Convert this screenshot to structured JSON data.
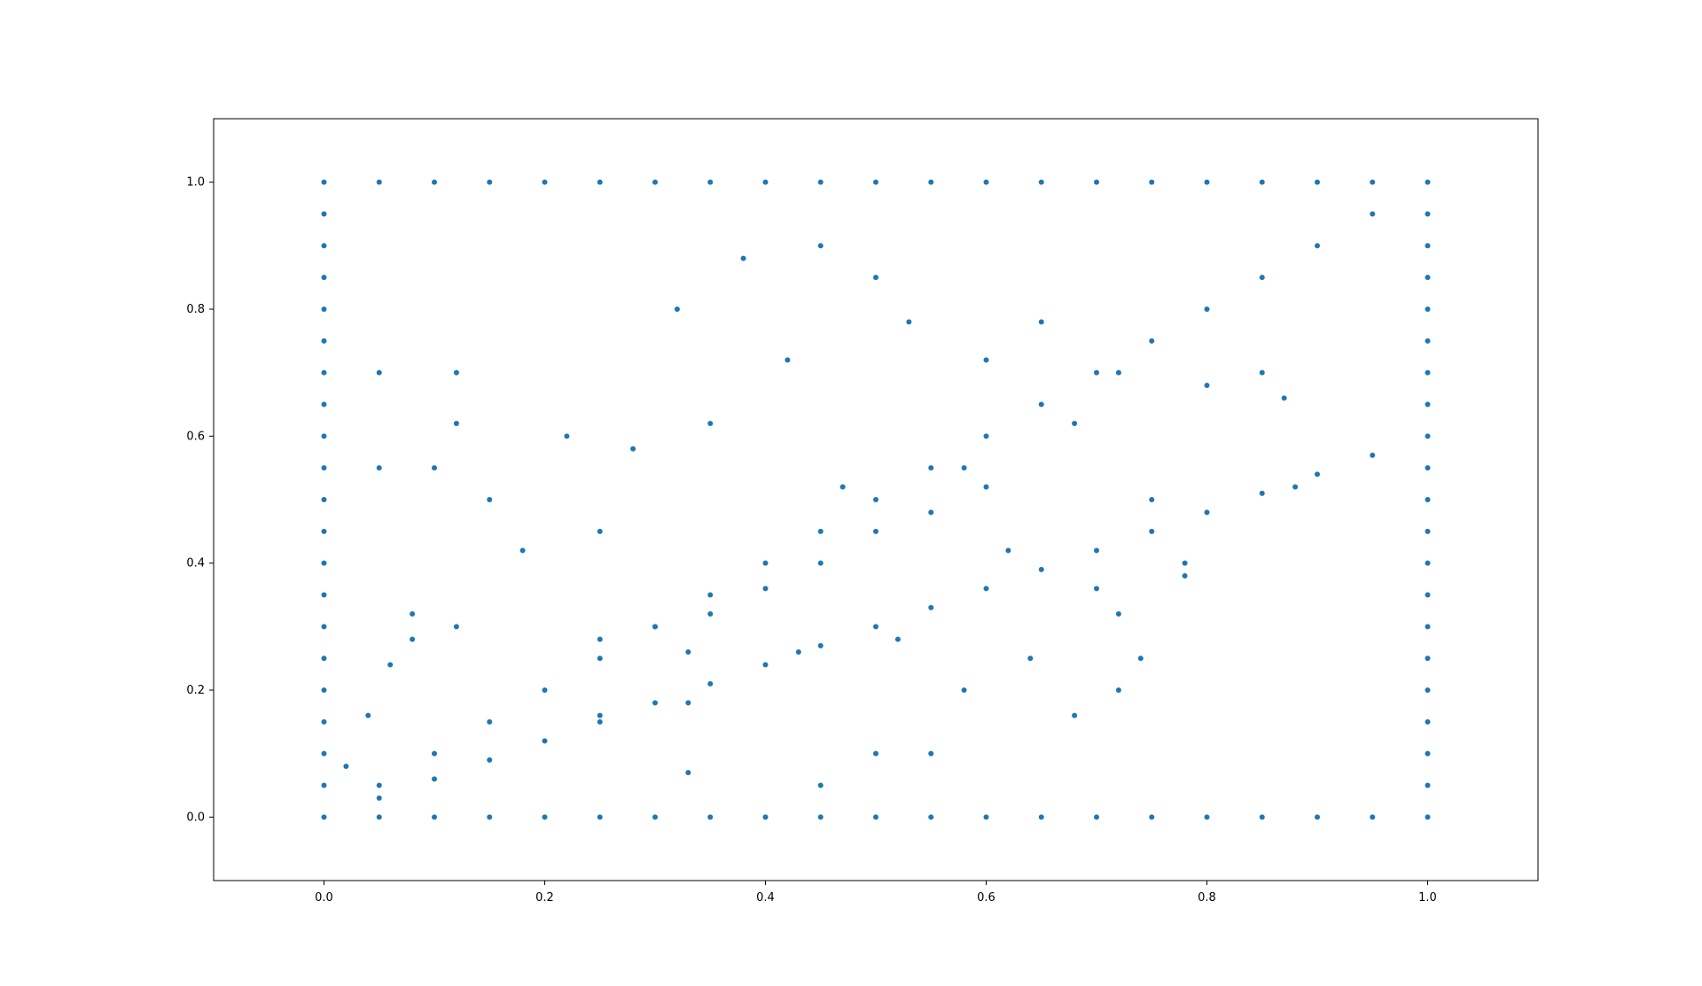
{
  "chart_data": {
    "type": "scatter",
    "title": "",
    "xlabel": "",
    "ylabel": "",
    "xlim": [
      -0.1,
      1.1
    ],
    "ylim": [
      -0.1,
      1.1
    ],
    "xticks": [
      0.0,
      0.2,
      0.4,
      0.6,
      0.8,
      1.0
    ],
    "xtick_labels": [
      "0.0",
      "0.2",
      "0.4",
      "0.6",
      "0.8",
      "1.0"
    ],
    "yticks": [
      0.0,
      0.2,
      0.4,
      0.6,
      0.8,
      1.0
    ],
    "ytick_labels": [
      "0.0",
      "0.2",
      "0.4",
      "0.6",
      "0.8",
      "1.0"
    ],
    "grid": false,
    "color": "#1f77b4",
    "series": [
      {
        "points": [
          [
            0.0,
            0.0
          ],
          [
            0.0,
            0.05
          ],
          [
            0.0,
            0.1
          ],
          [
            0.0,
            0.15
          ],
          [
            0.0,
            0.2
          ],
          [
            0.0,
            0.25
          ],
          [
            0.0,
            0.3
          ],
          [
            0.0,
            0.35
          ],
          [
            0.0,
            0.4
          ],
          [
            0.0,
            0.45
          ],
          [
            0.0,
            0.5
          ],
          [
            0.0,
            0.55
          ],
          [
            0.0,
            0.6
          ],
          [
            0.0,
            0.65
          ],
          [
            0.0,
            0.7
          ],
          [
            0.0,
            0.75
          ],
          [
            0.0,
            0.8
          ],
          [
            0.0,
            0.85
          ],
          [
            0.0,
            0.9
          ],
          [
            0.0,
            0.95
          ],
          [
            0.0,
            1.0
          ],
          [
            1.0,
            0.0
          ],
          [
            1.0,
            0.05
          ],
          [
            1.0,
            0.1
          ],
          [
            1.0,
            0.15
          ],
          [
            1.0,
            0.2
          ],
          [
            1.0,
            0.25
          ],
          [
            1.0,
            0.3
          ],
          [
            1.0,
            0.35
          ],
          [
            1.0,
            0.4
          ],
          [
            1.0,
            0.45
          ],
          [
            1.0,
            0.5
          ],
          [
            1.0,
            0.55
          ],
          [
            1.0,
            0.6
          ],
          [
            1.0,
            0.65
          ],
          [
            1.0,
            0.7
          ],
          [
            1.0,
            0.75
          ],
          [
            1.0,
            0.8
          ],
          [
            1.0,
            0.85
          ],
          [
            1.0,
            0.9
          ],
          [
            1.0,
            0.95
          ],
          [
            1.0,
            1.0
          ],
          [
            0.05,
            0.0
          ],
          [
            0.1,
            0.0
          ],
          [
            0.15,
            0.0
          ],
          [
            0.2,
            0.0
          ],
          [
            0.25,
            0.0
          ],
          [
            0.3,
            0.0
          ],
          [
            0.35,
            0.0
          ],
          [
            0.4,
            0.0
          ],
          [
            0.45,
            0.0
          ],
          [
            0.5,
            0.0
          ],
          [
            0.55,
            0.0
          ],
          [
            0.6,
            0.0
          ],
          [
            0.65,
            0.0
          ],
          [
            0.7,
            0.0
          ],
          [
            0.75,
            0.0
          ],
          [
            0.8,
            0.0
          ],
          [
            0.85,
            0.0
          ],
          [
            0.9,
            0.0
          ],
          [
            0.95,
            0.0
          ],
          [
            0.05,
            1.0
          ],
          [
            0.1,
            1.0
          ],
          [
            0.15,
            1.0
          ],
          [
            0.2,
            1.0
          ],
          [
            0.25,
            1.0
          ],
          [
            0.3,
            1.0
          ],
          [
            0.35,
            1.0
          ],
          [
            0.4,
            1.0
          ],
          [
            0.45,
            1.0
          ],
          [
            0.5,
            1.0
          ],
          [
            0.55,
            1.0
          ],
          [
            0.6,
            1.0
          ],
          [
            0.65,
            1.0
          ],
          [
            0.7,
            1.0
          ],
          [
            0.75,
            1.0
          ],
          [
            0.8,
            1.0
          ],
          [
            0.85,
            1.0
          ],
          [
            0.9,
            1.0
          ],
          [
            0.95,
            1.0
          ],
          [
            0.05,
            0.05
          ],
          [
            0.1,
            0.1
          ],
          [
            0.15,
            0.15
          ],
          [
            0.2,
            0.2
          ],
          [
            0.25,
            0.25
          ],
          [
            0.3,
            0.3
          ],
          [
            0.35,
            0.35
          ],
          [
            0.4,
            0.4
          ],
          [
            0.45,
            0.45
          ],
          [
            0.5,
            0.5
          ],
          [
            0.55,
            0.55
          ],
          [
            0.6,
            0.6
          ],
          [
            0.65,
            0.65
          ],
          [
            0.7,
            0.7
          ],
          [
            0.75,
            0.75
          ],
          [
            0.8,
            0.8
          ],
          [
            0.85,
            0.85
          ],
          [
            0.9,
            0.9
          ],
          [
            0.95,
            0.95
          ],
          [
            0.05,
            0.03
          ],
          [
            0.1,
            0.06
          ],
          [
            0.15,
            0.09
          ],
          [
            0.2,
            0.12
          ],
          [
            0.25,
            0.15
          ],
          [
            0.3,
            0.18
          ],
          [
            0.35,
            0.21
          ],
          [
            0.4,
            0.24
          ],
          [
            0.45,
            0.27
          ],
          [
            0.5,
            0.3
          ],
          [
            0.55,
            0.33
          ],
          [
            0.6,
            0.36
          ],
          [
            0.65,
            0.39
          ],
          [
            0.7,
            0.42
          ],
          [
            0.75,
            0.45
          ],
          [
            0.8,
            0.48
          ],
          [
            0.85,
            0.51
          ],
          [
            0.9,
            0.54
          ],
          [
            0.95,
            0.57
          ],
          [
            0.02,
            0.08
          ],
          [
            0.04,
            0.16
          ],
          [
            0.06,
            0.24
          ],
          [
            0.08,
            0.32
          ],
          [
            0.3,
            0.3
          ],
          [
            0.35,
            0.32
          ],
          [
            0.4,
            0.36
          ],
          [
            0.45,
            0.4
          ],
          [
            0.5,
            0.45
          ],
          [
            0.55,
            0.48
          ],
          [
            0.6,
            0.52
          ],
          [
            0.05,
            0.55
          ],
          [
            0.1,
            0.55
          ],
          [
            0.05,
            0.7
          ],
          [
            0.12,
            0.62
          ],
          [
            0.12,
            0.7
          ],
          [
            0.15,
            0.5
          ],
          [
            0.18,
            0.42
          ],
          [
            0.22,
            0.6
          ],
          [
            0.25,
            0.45
          ],
          [
            0.28,
            0.58
          ],
          [
            0.32,
            0.8
          ],
          [
            0.35,
            0.62
          ],
          [
            0.38,
            0.88
          ],
          [
            0.42,
            0.72
          ],
          [
            0.45,
            0.9
          ],
          [
            0.47,
            0.52
          ],
          [
            0.5,
            0.85
          ],
          [
            0.53,
            0.78
          ],
          [
            0.58,
            0.55
          ],
          [
            0.6,
            0.72
          ],
          [
            0.62,
            0.42
          ],
          [
            0.65,
            0.78
          ],
          [
            0.68,
            0.62
          ],
          [
            0.7,
            0.36
          ],
          [
            0.72,
            0.7
          ],
          [
            0.75,
            0.5
          ],
          [
            0.78,
            0.38
          ],
          [
            0.8,
            0.68
          ],
          [
            0.85,
            0.7
          ],
          [
            0.88,
            0.52
          ],
          [
            0.08,
            0.28
          ],
          [
            0.12,
            0.3
          ],
          [
            0.25,
            0.28
          ],
          [
            0.25,
            0.16
          ],
          [
            0.33,
            0.18
          ],
          [
            0.33,
            0.07
          ],
          [
            0.45,
            0.05
          ],
          [
            0.5,
            0.1
          ],
          [
            0.55,
            0.1
          ],
          [
            0.58,
            0.2
          ],
          [
            0.64,
            0.25
          ],
          [
            0.68,
            0.16
          ],
          [
            0.72,
            0.2
          ],
          [
            0.74,
            0.25
          ],
          [
            0.52,
            0.28
          ],
          [
            0.43,
            0.26
          ],
          [
            0.33,
            0.26
          ],
          [
            0.72,
            0.32
          ],
          [
            0.78,
            0.4
          ],
          [
            0.87,
            0.66
          ]
        ]
      }
    ]
  }
}
